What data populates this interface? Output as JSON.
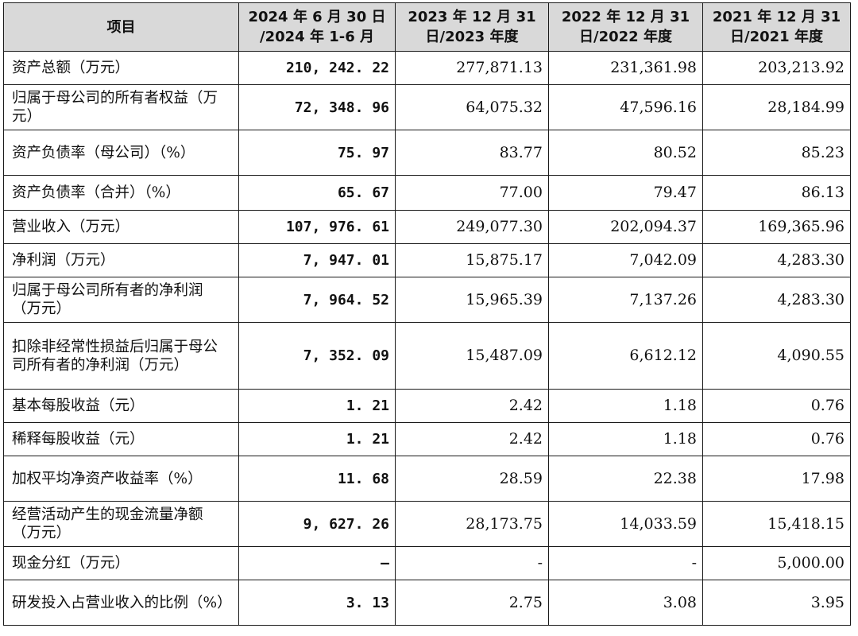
{
  "table": {
    "headers": [
      "项目",
      "2024 年 6 月 30 日 /2024 年 1-6 月",
      "2023 年 12 月 31 日/2023 年度",
      "2022 年 12 月 31 日/2022 年度",
      "2021 年 12 月 31 日/2021 年度"
    ],
    "rows": [
      {
        "label": "资产总额（万元）",
        "values": [
          "210, 242. 22",
          "277,871.13",
          "231,361.98",
          "203,213.92"
        ]
      },
      {
        "label": "归属于母公司的所有者权益（万元）",
        "values": [
          "72, 348. 96",
          "64,075.32",
          "47,596.16",
          "28,184.99"
        ]
      },
      {
        "label": "资产负债率（母公司）（%）",
        "values": [
          "75. 97",
          "83.77",
          "80.52",
          "85.23"
        ]
      },
      {
        "label": "资产负债率（合并）（%）",
        "values": [
          "65. 67",
          "77.00",
          "79.47",
          "86.13"
        ]
      },
      {
        "label": "营业收入（万元）",
        "values": [
          "107, 976. 61",
          "249,077.30",
          "202,094.37",
          "169,365.96"
        ]
      },
      {
        "label": "净利润（万元）",
        "values": [
          "7, 947. 01",
          "15,875.17",
          "7,042.09",
          "4,283.30"
        ]
      },
      {
        "label": "归属于母公司所有者的净利润（万元）",
        "values": [
          "7, 964. 52",
          "15,965.39",
          "7,137.26",
          "4,283.30"
        ]
      },
      {
        "label": "扣除非经常性损益后归属于母公司所有者的净利润（万元）",
        "values": [
          "7, 352. 09",
          "15,487.09",
          "6,612.12",
          "4,090.55"
        ]
      },
      {
        "label": "基本每股收益（元）",
        "values": [
          "1. 21",
          "2.42",
          "1.18",
          "0.76"
        ]
      },
      {
        "label": "稀释每股收益（元）",
        "values": [
          "1. 21",
          "2.42",
          "1.18",
          "0.76"
        ]
      },
      {
        "label": "加权平均净资产收益率（%）",
        "values": [
          "11. 68",
          "28.59",
          "22.38",
          "17.98"
        ]
      },
      {
        "label": "经营活动产生的现金流量净额（万元）",
        "values": [
          "9, 627. 26",
          "28,173.75",
          "14,033.59",
          "15,418.15"
        ]
      },
      {
        "label": "现金分红（万元）",
        "values": [
          "–",
          "-",
          "-",
          "5,000.00"
        ]
      },
      {
        "label": "研发投入占营业收入的比例（%）",
        "values": [
          "3. 13",
          "2.75",
          "3.08",
          "3.95"
        ]
      }
    ]
  }
}
